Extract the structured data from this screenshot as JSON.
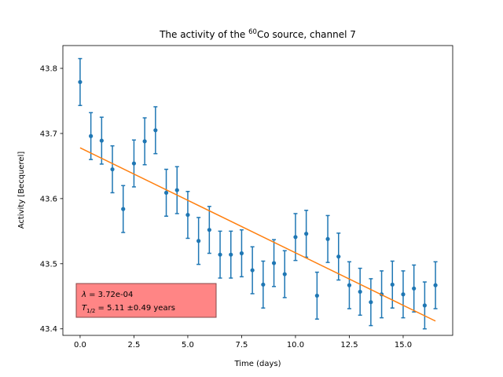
{
  "chart_data": {
    "type": "scatter",
    "title": "The activity of the ⁶⁰Co source, channel 7",
    "title_parts": {
      "before": "The activity of the ",
      "sup": "60",
      "after": "Co source, channel 7"
    },
    "xlabel": "Time (days)",
    "ylabel": "Activity [Becquerel]",
    "xlim": [
      -0.8,
      17.3
    ],
    "ylim": [
      43.39,
      43.835
    ],
    "xticks": [
      0.0,
      2.5,
      5.0,
      7.5,
      10.0,
      12.5,
      15.0
    ],
    "xtick_labels": [
      "0.0",
      "2.5",
      "5.0",
      "7.5",
      "10.0",
      "12.5",
      "15.0"
    ],
    "yticks": [
      43.4,
      43.5,
      43.6,
      43.7,
      43.8
    ],
    "ytick_labels": [
      "43.4",
      "43.5",
      "43.6",
      "43.7",
      "43.8"
    ],
    "grid": false,
    "series": [
      {
        "kind": "errorbar",
        "color": "#1f77b4",
        "x": [
          0.0,
          0.5,
          1.0,
          1.5,
          2.0,
          2.5,
          3.0,
          3.5,
          4.0,
          4.5,
          5.0,
          5.5,
          6.0,
          6.5,
          7.0,
          7.5,
          8.0,
          8.5,
          9.0,
          9.5,
          10.0,
          10.5,
          11.0,
          11.5,
          12.0,
          12.5,
          13.0,
          13.5,
          14.0,
          14.5,
          15.0,
          15.5,
          16.0,
          16.5
        ],
        "y": [
          43.779,
          43.696,
          43.689,
          43.645,
          43.584,
          43.654,
          43.688,
          43.705,
          43.609,
          43.613,
          43.575,
          43.535,
          43.552,
          43.514,
          43.514,
          43.516,
          43.49,
          43.468,
          43.501,
          43.484,
          43.541,
          43.546,
          43.451,
          43.538,
          43.511,
          43.467,
          43.457,
          43.441,
          43.453,
          43.468,
          43.453,
          43.462,
          43.436,
          43.467
        ],
        "yerr": 0.036
      },
      {
        "kind": "fit",
        "color": "#ff7f0e",
        "x": [
          0.0,
          16.5
        ],
        "y": [
          43.678,
          43.412
        ]
      }
    ],
    "annotation": {
      "lambda_symbol": "λ",
      "lambda_text": " = 3.72e-04",
      "t_symbol": "T",
      "t_sub": "1/2",
      "t_text": " = 5.11 ±0.49 years",
      "box_color": "#ff7f7f",
      "box_edge": "#7f3f3f"
    }
  }
}
